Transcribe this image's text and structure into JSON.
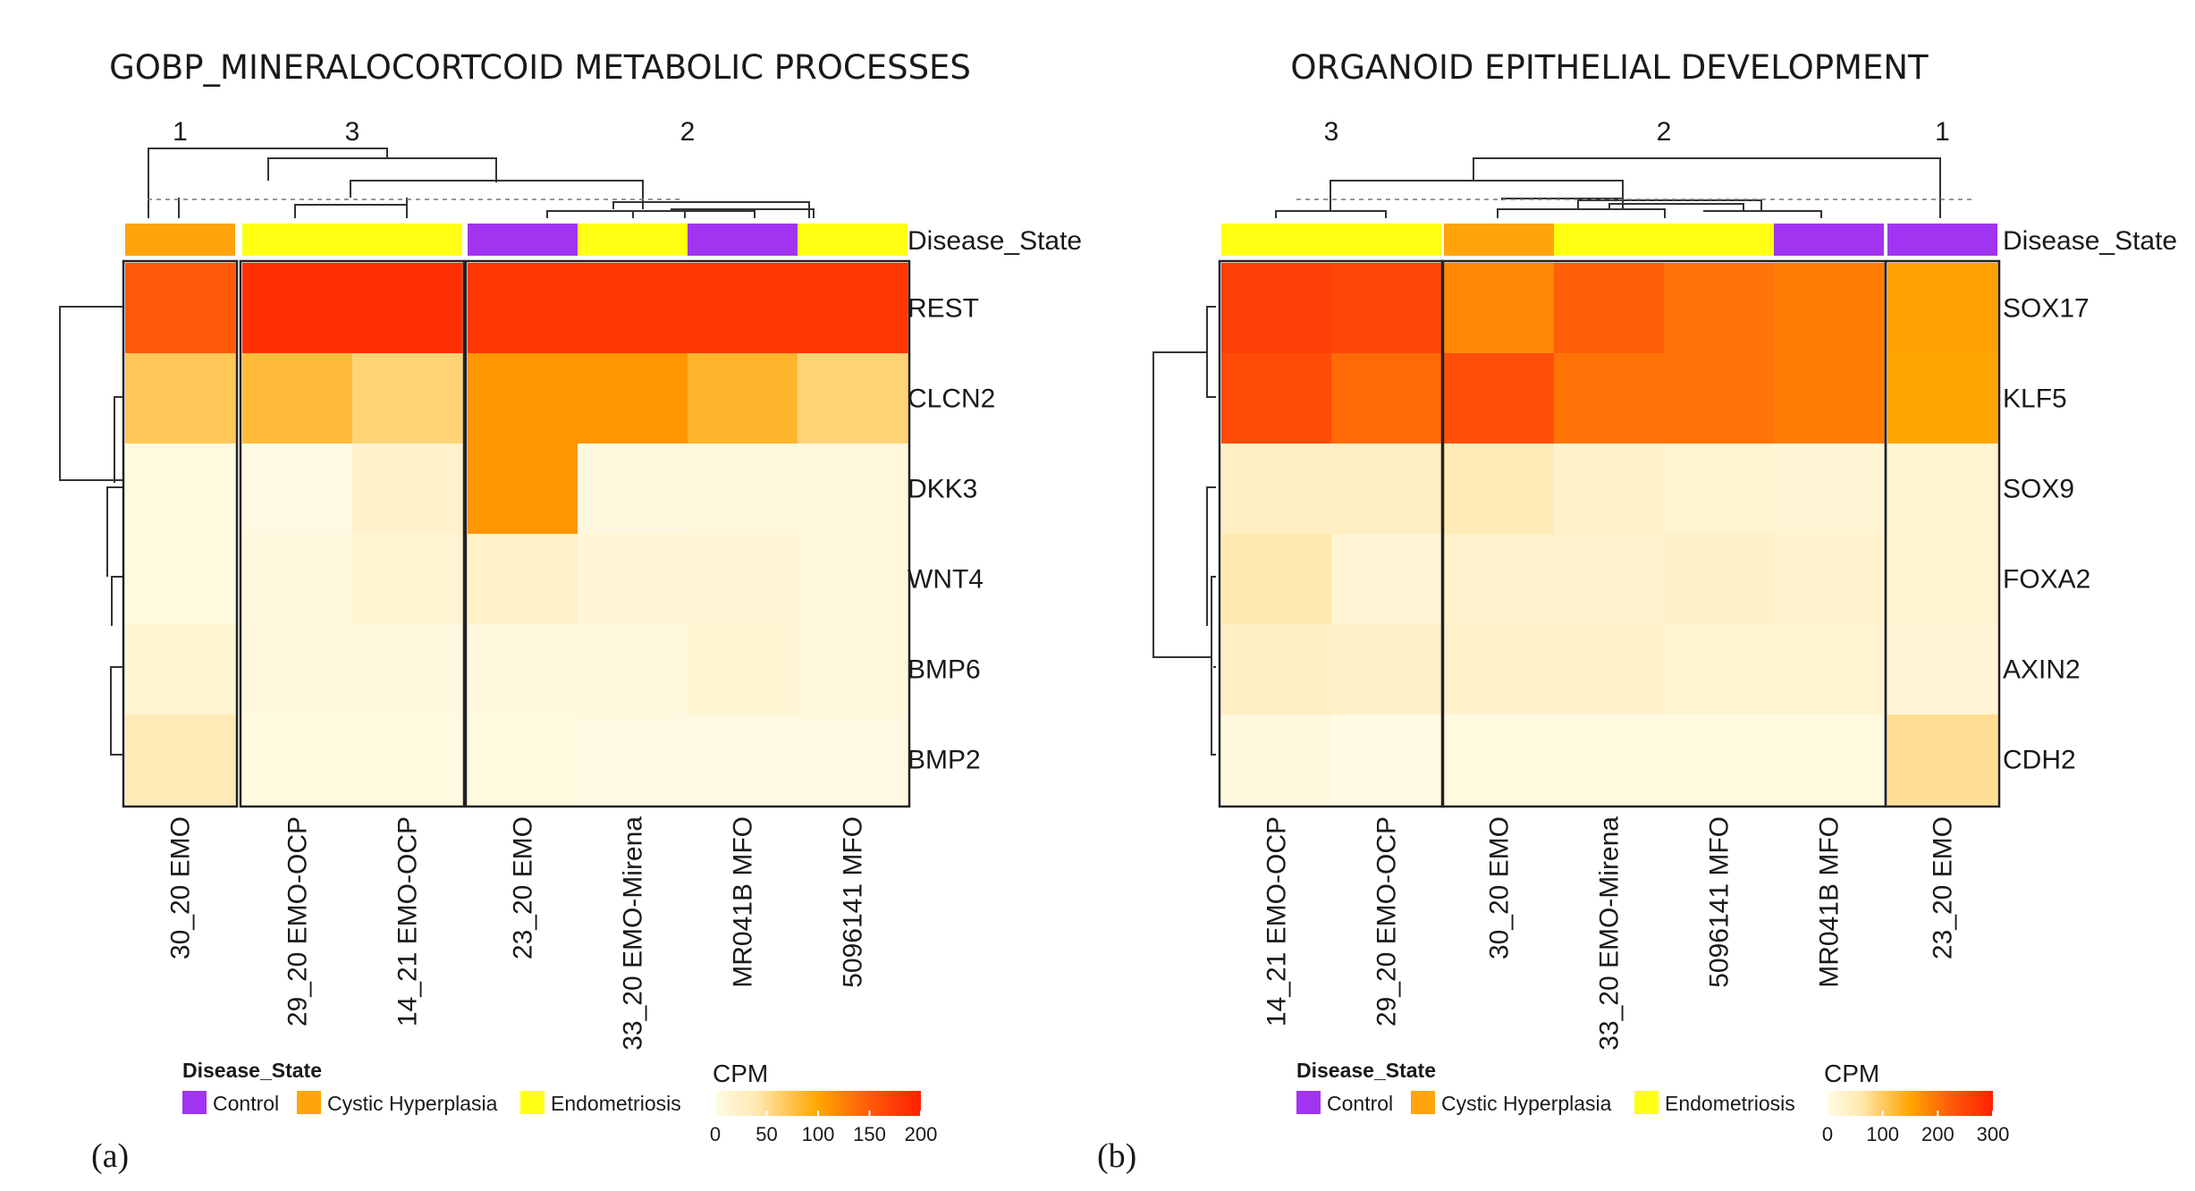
{
  "colors": {
    "Control": "#A134F0",
    "Cystic Hyperplasia": "#FFA40A",
    "Endometriosis": "#FFFF14",
    "scale": [
      "#FFFBE6",
      "#FFE9B0",
      "#FFA500",
      "#FF5A0A",
      "#FF2000"
    ]
  },
  "chart_data": [
    {
      "type": "heatmap",
      "panel_label": "(a)",
      "title": "GOBP_MINERALOCORTCOID METABOLIC PROCESSES",
      "clusters": [
        {
          "label": "1",
          "count": 1
        },
        {
          "label": "3",
          "count": 2
        },
        {
          "label": "2",
          "count": 4
        }
      ],
      "columns": [
        "30_20 EMO",
        "29_20 EMO-OCP",
        "14_21 EMO-OCP",
        "23_20 EMO",
        "33_20 EMO-Mirena",
        "MR041B MFO",
        "5096141 MFO"
      ],
      "annotation_label": "Disease_State",
      "disease_state": [
        "Cystic Hyperplasia",
        "Endometriosis",
        "Endometriosis",
        "Control",
        "Endometriosis",
        "Control",
        "Endometriosis"
      ],
      "rows": [
        "REST",
        "CLCN2",
        "DKK3",
        "WNT4",
        "BMP6",
        "BMP2"
      ],
      "values": [
        [
          150,
          185,
          185,
          180,
          180,
          180,
          180
        ],
        [
          70,
          80,
          60,
          110,
          110,
          85,
          60
        ],
        [
          5,
          4,
          20,
          110,
          6,
          10,
          10
        ],
        [
          5,
          8,
          14,
          20,
          12,
          12,
          10
        ],
        [
          14,
          6,
          6,
          6,
          8,
          14,
          10
        ],
        [
          35,
          5,
          5,
          5,
          4,
          4,
          4
        ]
      ],
      "color_scale": {
        "label": "CPM",
        "min": 0,
        "max": 200,
        "ticks": [
          0,
          50,
          100,
          150,
          200
        ]
      },
      "legend": {
        "title": "Disease_State",
        "items": [
          "Control",
          "Cystic Hyperplasia",
          "Endometriosis"
        ]
      }
    },
    {
      "type": "heatmap",
      "panel_label": "(b)",
      "title": "ORGANOID EPITHELIAL DEVELOPMENT",
      "clusters": [
        {
          "label": "3",
          "count": 2
        },
        {
          "label": "2",
          "count": 4
        },
        {
          "label": "1",
          "count": 1
        }
      ],
      "columns": [
        "14_21 EMO-OCP",
        "29_20 EMO-OCP",
        "30_20 EMO",
        "33_20 EMO-Mirena",
        "5096141 MFO",
        "MR041B MFO",
        "23_20 EMO"
      ],
      "annotation_label": "Disease_State",
      "disease_state": [
        "Endometriosis",
        "Endometriosis",
        "Cystic Hyperplasia",
        "Endometriosis",
        "Endometriosis",
        "Control",
        "Control"
      ],
      "rows": [
        "SOX17",
        "KLF5",
        "SOX9",
        "FOXA2",
        "AXIN2",
        "CDH2"
      ],
      "values": [
        [
          260,
          250,
          180,
          220,
          200,
          190,
          155
        ],
        [
          245,
          210,
          240,
          200,
          200,
          190,
          150
        ],
        [
          40,
          40,
          55,
          30,
          25,
          20,
          25
        ],
        [
          60,
          20,
          28,
          28,
          35,
          28,
          25
        ],
        [
          40,
          35,
          30,
          30,
          25,
          25,
          18
        ],
        [
          10,
          5,
          8,
          8,
          8,
          8,
          75
        ]
      ],
      "color_scale": {
        "label": "CPM",
        "min": 0,
        "max": 300,
        "ticks": [
          0,
          100,
          200,
          300
        ]
      },
      "legend": {
        "title": "Disease_State",
        "items": [
          "Control",
          "Cystic Hyperplasia",
          "Endometriosis"
        ]
      }
    }
  ]
}
